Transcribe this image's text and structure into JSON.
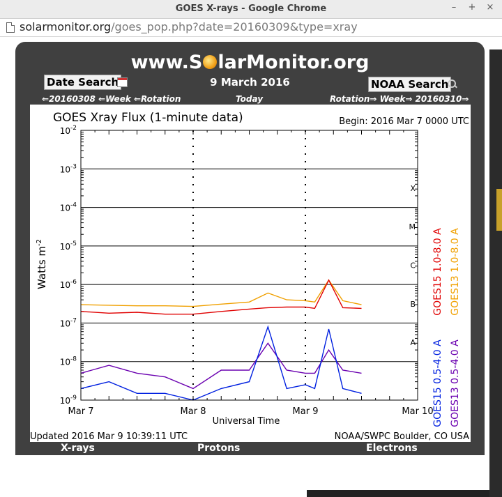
{
  "window": {
    "title": "GOES X-rays - Google Chrome"
  },
  "address_bar": {
    "host": "solarmonitor.org",
    "path": "/goes_pop.php?date=20160309&type=xray"
  },
  "site": {
    "logo_pre": "www.S",
    "logo_post": "larMonitor.org"
  },
  "header": {
    "date_search_label": "Date Search",
    "noaa_search_label": "NOAA Search",
    "date_title": "9 March 2016",
    "nav_back": "⇐20160308 ⇐Week ⇐Rotation",
    "nav_today": "Today",
    "nav_forward": "Rotation⇒ Week⇒ 20160310⇒"
  },
  "plot": {
    "title": "GOES Xray Flux (1-minute data)",
    "begin": "Begin:  2016 Mar 7 0000 UTC",
    "ylabel_main": "Watts m",
    "ylabel_exp": "-2",
    "xlabel": "Universal Time",
    "x_ticks": [
      "Mar 7",
      "Mar 8",
      "Mar 9",
      "Mar 10"
    ],
    "y_ticks": [
      {
        "base": "10",
        "exp": "-2"
      },
      {
        "base": "10",
        "exp": "-3"
      },
      {
        "base": "10",
        "exp": "-4"
      },
      {
        "base": "10",
        "exp": "-5"
      },
      {
        "base": "10",
        "exp": "-6"
      },
      {
        "base": "10",
        "exp": "-7"
      },
      {
        "base": "10",
        "exp": "-8"
      },
      {
        "base": "10",
        "exp": "-9"
      }
    ],
    "flare_classes": [
      "X",
      "M",
      "C",
      "B",
      "A"
    ],
    "legend_long": [
      "GOES15 1.0-8.0 A",
      "GOES13 1.0-8.0 A"
    ],
    "legend_short": [
      "GOES15 0.5-4.0 A",
      "GOES13 0.5-4.0 A"
    ],
    "updated": "Updated 2016 Mar  9 10:39:11 UTC",
    "credit": "NOAA/SWPC Boulder, CO USA"
  },
  "tabs": [
    "X-rays",
    "Protons",
    "Electrons"
  ],
  "colors": {
    "goes15_long": "#e00000",
    "goes13_long": "#f0a000",
    "goes15_short": "#0020e0",
    "goes13_short": "#6a00b0",
    "panel": "#404040"
  },
  "chart_data": {
    "type": "line",
    "title": "GOES Xray Flux (1-minute data)",
    "xlabel": "Universal Time",
    "ylabel": "Watts m-2",
    "y_scale": "log",
    "ylim": [
      1e-09,
      0.01
    ],
    "x_range_days": [
      "Mar 7",
      "Mar 10"
    ],
    "series": [
      {
        "name": "GOES15 1.0-8.0 A",
        "x_hours": [
          0,
          6,
          12,
          18,
          24,
          30,
          36,
          40,
          44,
          48,
          50,
          53,
          56,
          60
        ],
        "values": [
          2e-07,
          1.8e-07,
          1.9e-07,
          1.7e-07,
          1.7e-07,
          2e-07,
          2.3e-07,
          2.5e-07,
          2.6e-07,
          2.6e-07,
          2.4e-07,
          1.3e-06,
          2.5e-07,
          2.4e-07
        ]
      },
      {
        "name": "GOES13 1.0-8.0 A",
        "x_hours": [
          0,
          6,
          12,
          18,
          24,
          30,
          36,
          40,
          44,
          48,
          50,
          53,
          56,
          60
        ],
        "values": [
          3e-07,
          2.9e-07,
          2.8e-07,
          2.8e-07,
          2.7e-07,
          3.1e-07,
          3.5e-07,
          6e-07,
          4e-07,
          3.8e-07,
          3.5e-07,
          1.3e-06,
          3.8e-07,
          3e-07
        ]
      },
      {
        "name": "GOES15 0.5-4.0 A",
        "x_hours": [
          0,
          6,
          12,
          18,
          24,
          30,
          36,
          40,
          44,
          48,
          50,
          53,
          56,
          60
        ],
        "values": [
          2e-09,
          3e-09,
          1.5e-09,
          1.5e-09,
          1e-09,
          2e-09,
          3e-09,
          8e-08,
          2e-09,
          2.5e-09,
          2e-09,
          7e-08,
          2e-09,
          1.5e-09
        ]
      },
      {
        "name": "GOES13 0.5-4.0 A",
        "x_hours": [
          0,
          6,
          12,
          18,
          24,
          30,
          36,
          40,
          44,
          48,
          50,
          53,
          56,
          60
        ],
        "values": [
          5e-09,
          8e-09,
          5e-09,
          4e-09,
          2e-09,
          6e-09,
          6e-09,
          3e-08,
          6e-09,
          5e-09,
          5e-09,
          2e-08,
          6e-09,
          5e-09
        ]
      }
    ]
  }
}
